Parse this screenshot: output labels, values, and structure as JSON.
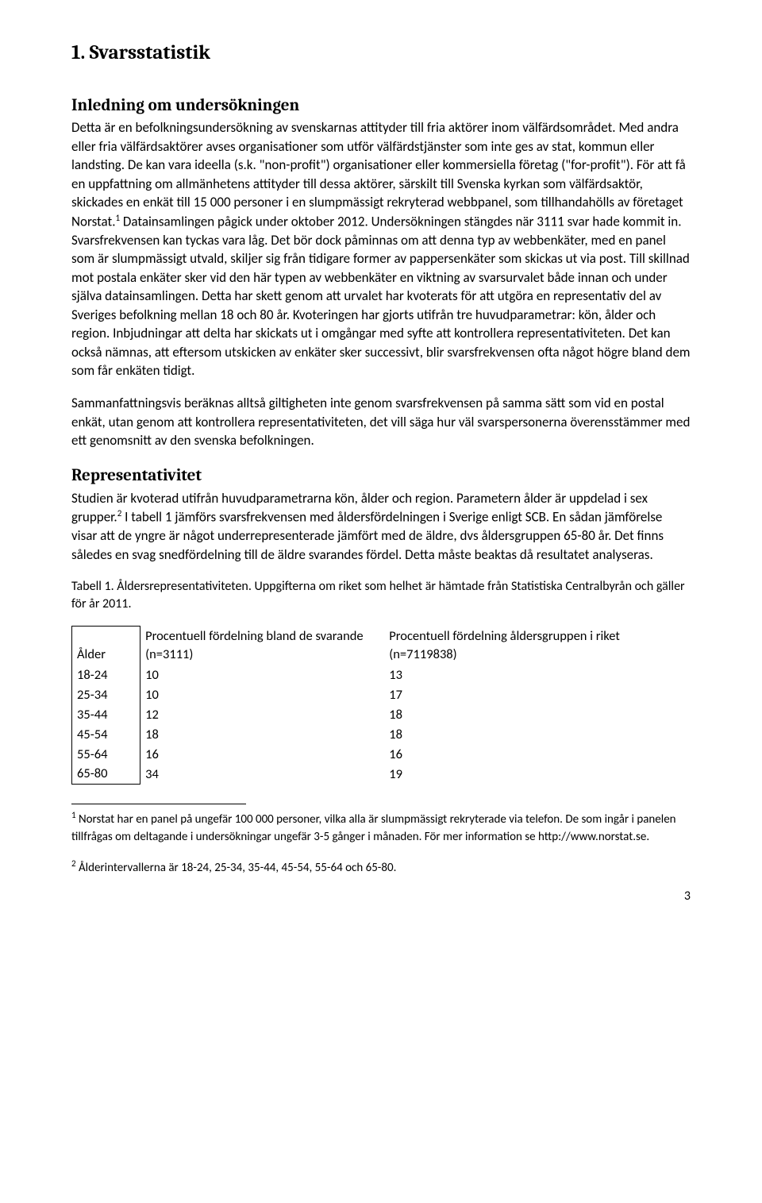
{
  "heading1": "1. Svarsstatistik",
  "heading2a": "Inledning om undersökningen",
  "para1": "Detta är en befolkningsundersökning av svenskarnas attityder till fria aktörer inom välfärdsområdet. Med andra eller fria välfärdsaktörer avses organisationer som utför välfärdstjänster som inte ges av stat, kommun eller landsting. De kan vara ideella (s.k. \"non-profit\") organisationer eller kommersiella företag (\"for-profit\"). För att få en uppfattning om allmänhetens attityder till dessa aktörer, särskilt till Svenska kyrkan som välfärdsaktör, skickades en enkät till 15 000 personer i en slumpmässigt rekryterad webbpanel, som tillhandahölls av företaget Norstat.",
  "para1_sup": "1",
  "para1b": " Datainsamlingen pågick under oktober 2012. Undersökningen stängdes när 3111 svar hade kommit in. Svarsfrekvensen kan tyckas vara låg. Det bör dock påminnas om att denna typ av webbenkäter, med en panel som är slumpmässigt utvald, skiljer sig från tidigare former av pappersenkäter som skickas ut via post. Till skillnad mot postala enkäter sker vid den här typen av webbenkäter en viktning av svarsurvalet både innan och under själva datainsamlingen. Detta har skett genom att urvalet har kvoterats för att utgöra en representativ del av Sveriges befolkning mellan 18 och 80 år. Kvoteringen har gjorts utifrån tre huvudparametrar: kön, ålder och region. Inbjudningar att delta har skickats ut i omgångar med syfte att kontrollera representativiteten. Det kan också nämnas, att eftersom utskicken av enkäter sker successivt, blir svarsfrekvensen ofta något högre bland dem som får enkäten tidigt.",
  "para2": "Sammanfattningsvis beräknas alltså giltigheten inte genom svarsfrekvensen på samma sätt som vid en postal enkät, utan genom att kontrollera representativiteten, det vill säga hur väl svarspersonerna överensstämmer med ett genomsnitt av den svenska befolkningen.",
  "heading2b": "Representativitet",
  "para3a": "Studien är kvoterad utifrån huvudparametrarna kön, ålder och region. Parametern ålder är uppdelad i sex grupper.",
  "para3_sup": "2",
  "para3b": " I tabell 1 jämförs svarsfrekvensen med åldersfördelningen i Sverige enligt SCB. En sådan jämförelse visar att de yngre är något underrepresenterade jämfört med de äldre, dvs åldersgruppen 65-80 år. Det finns således en svag snedfördelning till de äldre svarandes fördel. Detta måste beaktas då resultatet analyseras.",
  "tableCaption": "Tabell 1. Åldersrepresentativiteten. Uppgifterna om riket som helhet är hämtade från Statistiska Centralbyrån och gäller för år 2011.",
  "table": {
    "col_age_label": "Ålder",
    "col_a_label": "Procentuell fördelning bland de svarande (n=3111)",
    "col_b_label": "Procentuell fördelning åldersgruppen i riket (n=7119838)",
    "rows": [
      {
        "age": "18-24",
        "a": "10",
        "b": "13"
      },
      {
        "age": "25-34",
        "a": "10",
        "b": "17"
      },
      {
        "age": "35-44",
        "a": "12",
        "b": "18"
      },
      {
        "age": "45-54",
        "a": "18",
        "b": "18"
      },
      {
        "age": "55-64",
        "a": "16",
        "b": "16"
      },
      {
        "age": "65-80",
        "a": "34",
        "b": "19"
      }
    ]
  },
  "footnote1_sup": "1",
  "footnote1": " Norstat har en panel på ungefär 100 000 personer, vilka alla är slumpmässigt rekryterade via telefon. De som ingår i panelen tillfrågas om deltagande i undersökningar ungefär 3-5 gånger i månaden. För mer information se http://www.norstat.se.",
  "footnote2_sup": "2",
  "footnote2": " Ålderintervallerna är 18-24, 25-34, 35-44, 45-54, 55-64 och 65-80.",
  "pageNumber": "3"
}
